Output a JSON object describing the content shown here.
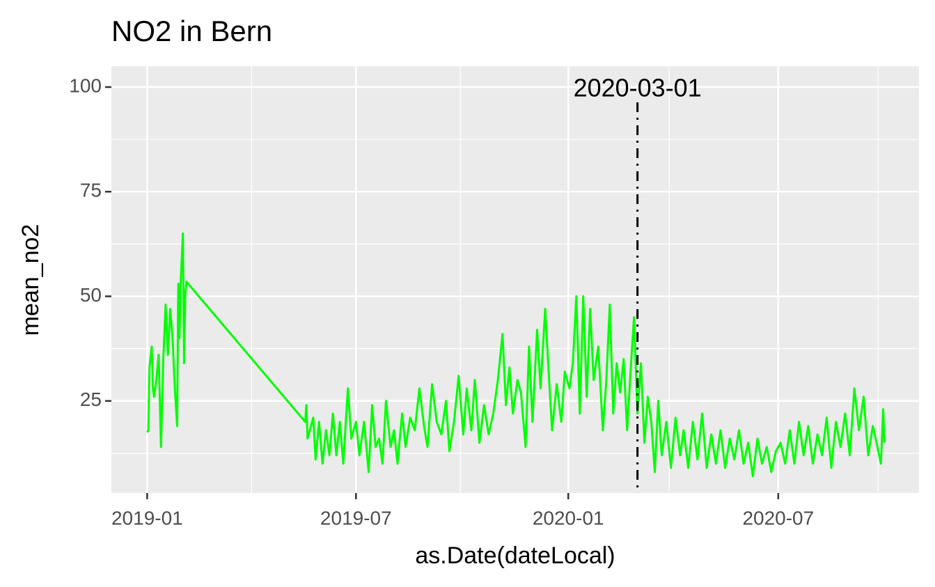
{
  "chart_data": {
    "type": "line",
    "title": "NO2 in Bern",
    "x_label": "as.Date(dateLocal)",
    "y_label": "mean_no2",
    "color": "#00ff00",
    "grid": true,
    "xlim": [
      "2018-12-01",
      "2020-10-31"
    ],
    "ylim": [
      3,
      105
    ],
    "xticks": [
      {
        "value": "2019-01-01",
        "label": "2019-01"
      },
      {
        "value": "2019-07-01",
        "label": "2019-07"
      },
      {
        "value": "2020-01-01",
        "label": "2020-01"
      },
      {
        "value": "2020-07-01",
        "label": "2020-07"
      }
    ],
    "yticks": [
      25,
      50,
      75,
      100
    ],
    "annotation": {
      "x": "2020-03-01",
      "y": 100,
      "label": "2020-03-01"
    },
    "x": [
      "2019-01-01",
      "2019-01-02",
      "2019-01-03",
      "2019-01-05",
      "2019-01-06",
      "2019-01-07",
      "2019-01-09",
      "2019-01-11",
      "2019-01-13",
      "2019-01-15",
      "2019-01-17",
      "2019-01-19",
      "2019-01-21",
      "2019-01-23",
      "2019-01-25",
      "2019-01-27",
      "2019-01-28",
      "2019-01-29",
      "2019-01-30",
      "2019-02-01",
      "2019-02-02",
      "2019-02-03",
      "2019-02-04",
      "2019-05-18",
      "2019-05-19",
      "2019-05-20",
      "2019-05-25",
      "2019-05-27",
      "2019-05-30",
      "2019-06-02",
      "2019-06-05",
      "2019-06-08",
      "2019-06-11",
      "2019-06-14",
      "2019-06-17",
      "2019-06-20",
      "2019-06-24",
      "2019-06-27",
      "2019-07-01",
      "2019-07-04",
      "2019-07-08",
      "2019-07-12",
      "2019-07-15",
      "2019-07-18",
      "2019-07-21",
      "2019-07-24",
      "2019-07-27",
      "2019-07-31",
      "2019-08-03",
      "2019-08-06",
      "2019-08-10",
      "2019-08-13",
      "2019-08-17",
      "2019-08-21",
      "2019-08-25",
      "2019-08-29",
      "2019-09-01",
      "2019-09-05",
      "2019-09-09",
      "2019-09-13",
      "2019-09-17",
      "2019-09-20",
      "2019-09-24",
      "2019-09-28",
      "2019-10-02",
      "2019-10-05",
      "2019-10-09",
      "2019-10-12",
      "2019-10-16",
      "2019-10-20",
      "2019-10-24",
      "2019-10-28",
      "2019-11-01",
      "2019-11-05",
      "2019-11-08",
      "2019-11-11",
      "2019-11-14",
      "2019-11-18",
      "2019-11-21",
      "2019-11-25",
      "2019-11-28",
      "2019-12-01",
      "2019-12-05",
      "2019-12-08",
      "2019-12-12",
      "2019-12-15",
      "2019-12-18",
      "2019-12-22",
      "2019-12-26",
      "2019-12-29",
      "2020-01-02",
      "2020-01-05",
      "2020-01-08",
      "2020-01-11",
      "2020-01-14",
      "2020-01-17",
      "2020-01-20",
      "2020-01-23",
      "2020-01-27",
      "2020-01-31",
      "2020-02-03",
      "2020-02-06",
      "2020-02-09",
      "2020-02-12",
      "2020-02-15",
      "2020-02-18",
      "2020-02-21",
      "2020-02-24",
      "2020-02-27",
      "2020-03-01",
      "2020-03-04",
      "2020-03-07",
      "2020-03-10",
      "2020-03-13",
      "2020-03-16",
      "2020-03-19",
      "2020-03-22",
      "2020-03-26",
      "2020-03-30",
      "2020-04-03",
      "2020-04-07",
      "2020-04-10",
      "2020-04-14",
      "2020-04-18",
      "2020-04-22",
      "2020-04-26",
      "2020-04-30",
      "2020-05-04",
      "2020-05-08",
      "2020-05-12",
      "2020-05-16",
      "2020-05-20",
      "2020-05-24",
      "2020-05-28",
      "2020-06-01",
      "2020-06-05",
      "2020-06-09",
      "2020-06-13",
      "2020-06-17",
      "2020-06-21",
      "2020-06-25",
      "2020-06-29",
      "2020-07-03",
      "2020-07-07",
      "2020-07-11",
      "2020-07-15",
      "2020-07-19",
      "2020-07-23",
      "2020-07-27",
      "2020-07-31",
      "2020-08-04",
      "2020-08-08",
      "2020-08-12",
      "2020-08-16",
      "2020-08-20",
      "2020-08-24",
      "2020-08-28",
      "2020-09-01",
      "2020-09-05",
      "2020-09-09",
      "2020-09-13",
      "2020-09-17",
      "2020-09-21",
      "2020-09-25",
      "2020-09-28",
      "2020-09-30",
      "2020-10-01"
    ],
    "values": [
      17.5,
      18,
      33,
      38,
      28,
      26,
      30,
      36,
      14,
      35,
      48,
      36,
      47,
      40,
      28,
      19,
      53,
      40,
      53,
      65,
      34,
      50,
      53.5,
      20,
      24,
      16,
      21,
      11,
      20,
      10,
      18,
      12,
      22,
      12,
      20,
      10,
      28,
      16,
      20,
      12,
      20,
      8,
      24,
      14,
      16,
      10,
      25,
      14,
      18,
      10,
      22,
      14,
      21,
      18,
      28,
      19,
      14,
      29,
      20,
      17,
      25,
      13,
      20,
      31,
      17,
      28,
      18,
      30,
      15,
      24,
      17,
      22,
      30,
      41,
      24,
      33,
      22,
      30,
      27,
      14,
      38,
      20,
      42,
      28,
      47,
      32,
      18,
      29,
      20,
      32,
      28,
      34,
      50,
      22,
      50,
      26,
      47,
      30,
      38,
      18,
      30,
      48,
      22,
      34,
      27,
      35,
      18,
      32,
      45,
      22,
      34,
      15,
      26,
      20,
      8,
      25,
      12,
      20,
      9,
      21,
      12,
      18,
      9,
      20,
      11,
      22,
      9,
      17,
      10,
      18,
      9,
      16,
      11,
      18,
      10,
      15,
      7,
      16,
      10,
      14,
      8,
      13,
      15,
      10,
      18,
      10,
      20,
      12,
      19,
      10,
      17,
      12,
      21,
      9,
      20,
      14,
      22,
      12,
      28,
      18,
      26,
      12,
      19,
      14,
      10,
      23,
      15
    ]
  }
}
